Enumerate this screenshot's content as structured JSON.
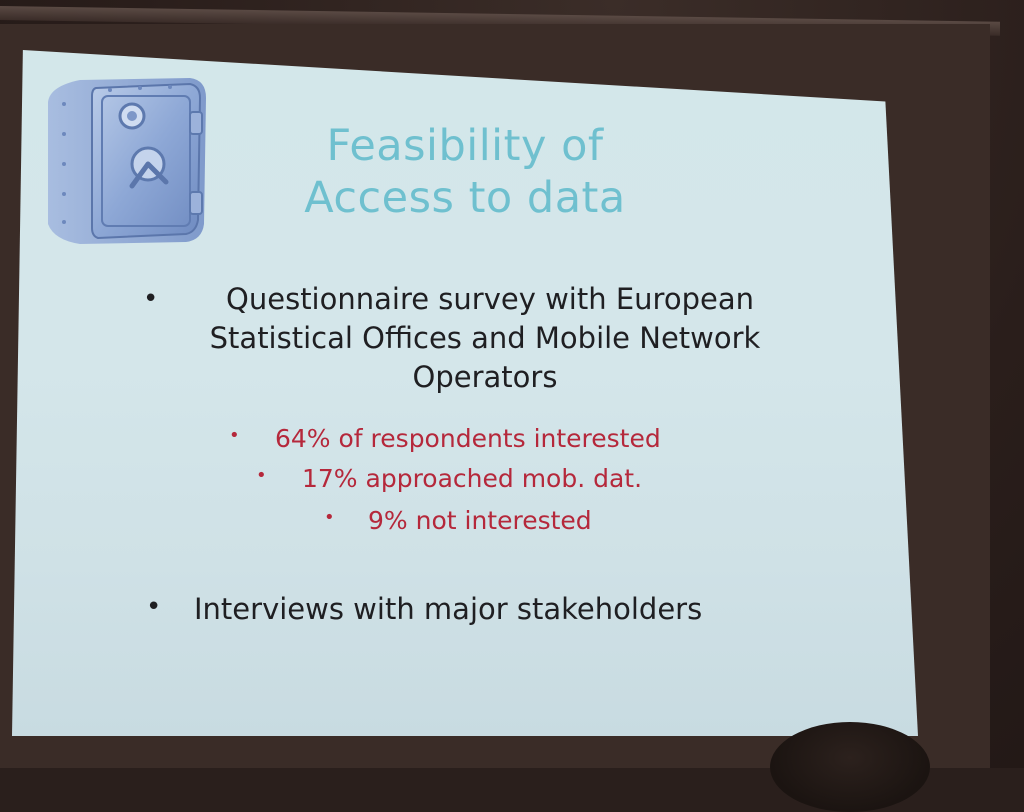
{
  "slide": {
    "title_line1": "Feasibility of",
    "title_line2": "Access to data",
    "bullets": [
      {
        "line1": "Questionnaire survey with European",
        "line2": "Statistical Offices and Mobile Network",
        "line3": "Operators"
      },
      {
        "line1": "Interviews with major stakeholders"
      }
    ],
    "sub_bullets": [
      "64% of respondents interested",
      "17% approached mob. dat.",
      "9% not interested"
    ],
    "bullet_glyph": "•",
    "icon": "safe-icon"
  },
  "colors": {
    "title": "#6fc0cf",
    "body_text": "#1f1f22",
    "sub_bullet_text": "#b5283b",
    "slide_background": "#d3e7ea"
  }
}
